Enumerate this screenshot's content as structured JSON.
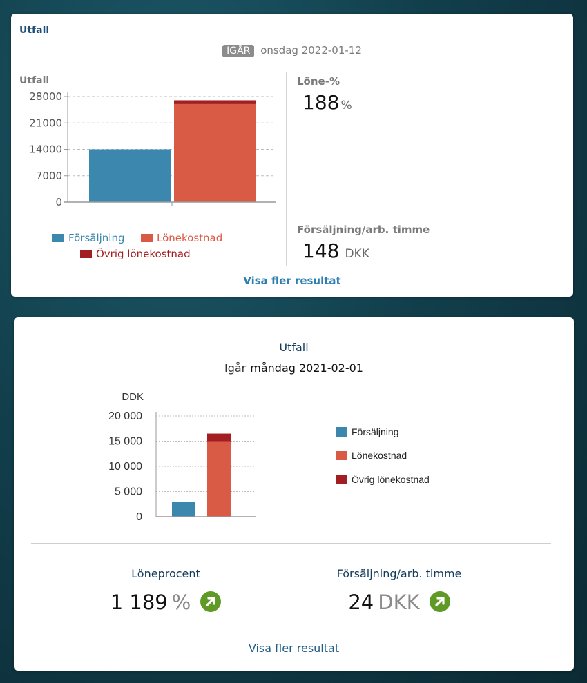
{
  "card1": {
    "title": "Utfall",
    "badge": "IGÅR",
    "date": "onsdag 2022-01-12",
    "chart_label": "Utfall",
    "kpi1_label": "Löne-%",
    "kpi1_value": "188",
    "kpi1_unit": "%",
    "kpi2_label": "Försäljning/arb. timme",
    "kpi2_value": "148",
    "kpi2_unit": "DKK",
    "link": "Visa fler resultat"
  },
  "card2": {
    "title": "Utfall",
    "date_prefix": "Igår",
    "date": "måndag 2021-02-01",
    "kpi1_label": "Löneprocent",
    "kpi1_value": "1 189",
    "kpi1_unit": "%",
    "kpi2_label": "Försäljning/arb. timme",
    "kpi2_value": "24",
    "kpi2_unit": "DKK",
    "link": "Visa fler resultat",
    "arrow_icon": "arrow-up-right-icon"
  },
  "colors": {
    "sales": "#3b87ae",
    "wage": "#d95a45",
    "other_wage": "#a31e22",
    "trend_up": "#5f9a26"
  },
  "chart_data": [
    {
      "type": "bar",
      "title": "",
      "ylabel": "Utfall",
      "ylim": [
        0,
        28000
      ],
      "yticks": [
        "0",
        "7000",
        "14000",
        "21000",
        "28000"
      ],
      "ytick_values": [
        0,
        7000,
        14000,
        21000,
        28000
      ],
      "bars": [
        {
          "series": "Försäljning",
          "value": 14000
        },
        {
          "stack": [
            {
              "series": "Lönekostnad",
              "value": 26000
            },
            {
              "series": "Övrig lönekostnad",
              "value": 1000
            }
          ]
        }
      ],
      "legend": [
        "Försäljning",
        "Lönekostnad",
        "Övrig lönekostnad"
      ],
      "legend_position": "bottom",
      "grid": true
    },
    {
      "type": "bar",
      "title": "",
      "ylabel": "DDK",
      "ylim": [
        0,
        20000
      ],
      "yticks": [
        "0",
        "5 000",
        "10 000",
        "15 000",
        "20 000"
      ],
      "ytick_values": [
        0,
        5000,
        10000,
        15000,
        20000
      ],
      "bars": [
        {
          "series": "Försäljning",
          "value": 2900
        },
        {
          "stack": [
            {
              "series": "Lönekostnad",
              "value": 15000
            },
            {
              "series": "Övrig lönekostnad",
              "value": 1500
            }
          ]
        }
      ],
      "legend": [
        "Försäljning",
        "Lönekostnad",
        "Övrig lönekostnad"
      ],
      "legend_position": "right",
      "grid": true
    }
  ]
}
